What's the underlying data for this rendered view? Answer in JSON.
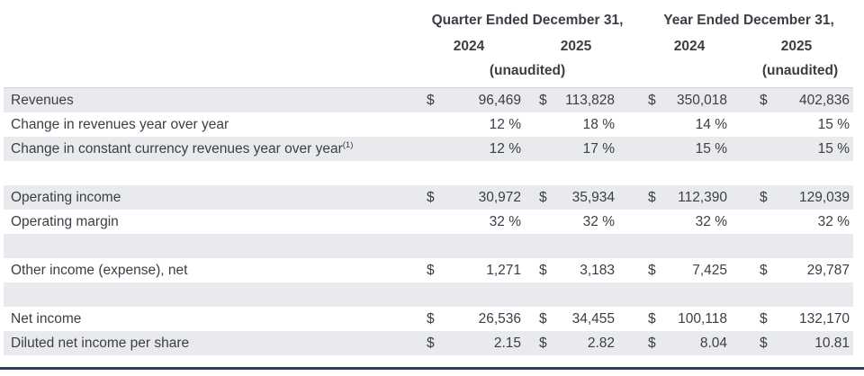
{
  "header": {
    "groups": [
      {
        "title": "Quarter Ended December 31,",
        "year_left": "2024",
        "year_right": "2025",
        "unaudited": "(unaudited)"
      },
      {
        "title": "Year Ended December 31,",
        "year_left": "2024",
        "year_right": "2025",
        "unaudited": "(unaudited)"
      }
    ]
  },
  "symbols": {
    "dollar": "$",
    "percent": "%"
  },
  "colors": {
    "row_shade": "#e9eaee",
    "text": "#3b3e45",
    "bottom_rule": "#333f50"
  },
  "rows": [
    {
      "label": "Revenues",
      "type": "currency",
      "shaded": true,
      "values": [
        "96,469",
        "113,828",
        "350,018",
        "402,836"
      ]
    },
    {
      "label": "Change in revenues year over year",
      "type": "percent",
      "shaded": false,
      "values": [
        "12",
        "18",
        "14",
        "15"
      ]
    },
    {
      "label": "Change in constant currency revenues year over year",
      "footnote": "(1)",
      "type": "percent",
      "shaded": true,
      "values": [
        "12",
        "17",
        "15",
        "15"
      ]
    },
    {
      "label": "",
      "type": "blank",
      "shaded": false,
      "values": [
        "",
        "",
        "",
        ""
      ]
    },
    {
      "label": "Operating income",
      "type": "currency",
      "shaded": true,
      "values": [
        "30,972",
        "35,934",
        "112,390",
        "129,039"
      ]
    },
    {
      "label": "Operating margin",
      "type": "percent",
      "shaded": false,
      "values": [
        "32",
        "32",
        "32",
        "32"
      ]
    },
    {
      "label": "",
      "type": "blank",
      "shaded": true,
      "values": [
        "",
        "",
        "",
        ""
      ]
    },
    {
      "label": "Other income (expense), net",
      "type": "currency",
      "shaded": false,
      "values": [
        "1,271",
        "3,183",
        "7,425",
        "29,787"
      ]
    },
    {
      "label": "",
      "type": "blank",
      "shaded": true,
      "values": [
        "",
        "",
        "",
        ""
      ]
    },
    {
      "label": "Net income",
      "type": "currency",
      "shaded": false,
      "values": [
        "26,536",
        "34,455",
        "100,118",
        "132,170"
      ]
    },
    {
      "label": "Diluted net income per share",
      "type": "currency",
      "shaded": true,
      "values": [
        "2.15",
        "2.82",
        "8.04",
        "10.81"
      ]
    }
  ]
}
